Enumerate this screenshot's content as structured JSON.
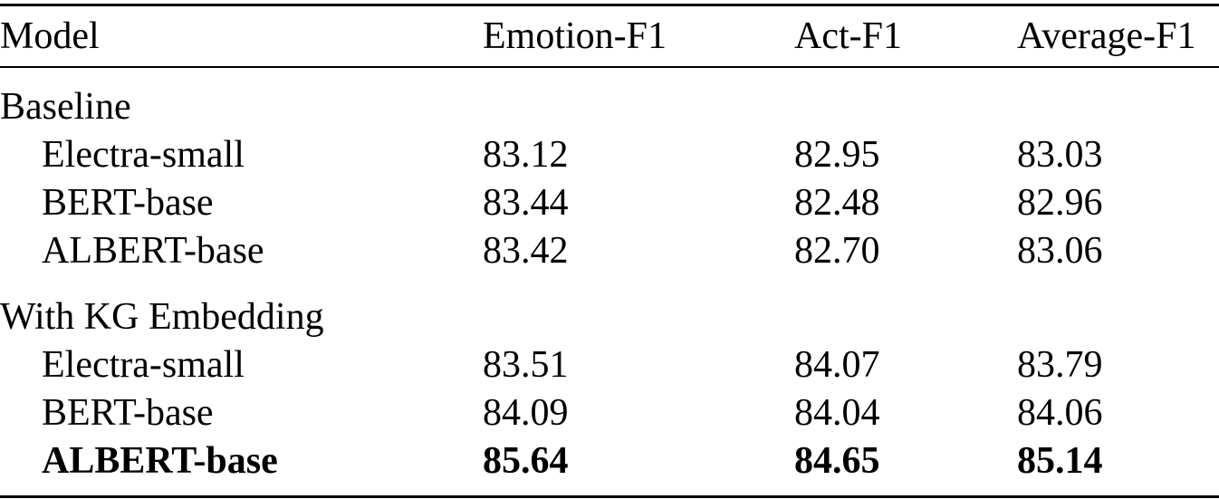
{
  "table": {
    "columns": {
      "model": "Model",
      "emotion_f1": "Emotion-F1",
      "act_f1": "Act-F1",
      "average_f1": "Average-F1"
    },
    "sections": [
      {
        "label": "Baseline",
        "rows": [
          {
            "model": "Electra-small",
            "emotion_f1": "83.12",
            "act_f1": "82.95",
            "average_f1": "83.03",
            "bold": false
          },
          {
            "model": "BERT-base",
            "emotion_f1": "83.44",
            "act_f1": "82.48",
            "average_f1": "82.96",
            "bold": false
          },
          {
            "model": "ALBERT-base",
            "emotion_f1": "83.42",
            "act_f1": "82.70",
            "average_f1": "83.06",
            "bold": false
          }
        ]
      },
      {
        "label": "With KG Embedding",
        "rows": [
          {
            "model": "Electra-small",
            "emotion_f1": "83.51",
            "act_f1": "84.07",
            "average_f1": "83.79",
            "bold": false
          },
          {
            "model": "BERT-base",
            "emotion_f1": "84.09",
            "act_f1": "84.04",
            "average_f1": "84.06",
            "bold": false
          },
          {
            "model": "ALBERT-base",
            "emotion_f1": "85.64",
            "act_f1": "84.65",
            "average_f1": "85.14",
            "bold": true
          }
        ]
      }
    ]
  }
}
